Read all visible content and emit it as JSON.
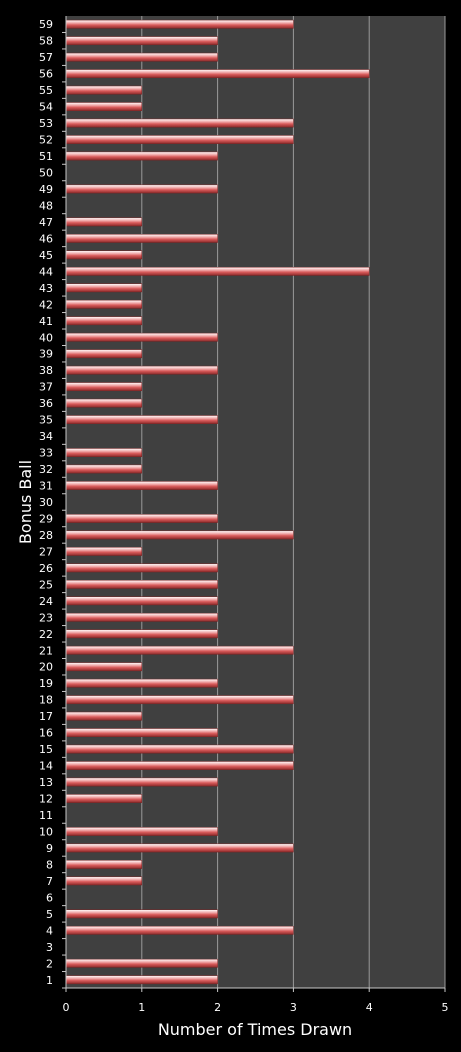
{
  "chart_data": {
    "type": "bar",
    "orientation": "horizontal",
    "xlabel": "Number of Times Drawn",
    "ylabel": "Bonus Ball",
    "xlim": [
      0,
      5
    ],
    "xticks": [
      0,
      1,
      2,
      3,
      4,
      5
    ],
    "grid": "vertical",
    "legend": "none",
    "plot_background": "#404040",
    "page_background": "#000000",
    "bar_color": "#d85a5a",
    "categories": [
      "1",
      "2",
      "3",
      "4",
      "5",
      "6",
      "7",
      "8",
      "9",
      "10",
      "11",
      "12",
      "13",
      "14",
      "15",
      "16",
      "17",
      "18",
      "19",
      "20",
      "21",
      "22",
      "23",
      "24",
      "25",
      "26",
      "27",
      "28",
      "29",
      "30",
      "31",
      "32",
      "33",
      "34",
      "35",
      "36",
      "37",
      "38",
      "39",
      "40",
      "41",
      "42",
      "43",
      "44",
      "45",
      "46",
      "47",
      "48",
      "49",
      "50",
      "51",
      "52",
      "53",
      "54",
      "55",
      "56",
      "57",
      "58",
      "59"
    ],
    "values": [
      2,
      2,
      0,
      3,
      2,
      0,
      1,
      1,
      3,
      2,
      0,
      1,
      2,
      3,
      3,
      2,
      1,
      3,
      2,
      1,
      3,
      2,
      2,
      2,
      2,
      2,
      1,
      3,
      2,
      0,
      2,
      1,
      1,
      0,
      2,
      1,
      1,
      2,
      1,
      2,
      1,
      1,
      1,
      4,
      1,
      2,
      1,
      0,
      2,
      0,
      2,
      3,
      3,
      1,
      1,
      4,
      2,
      2,
      3
    ]
  }
}
